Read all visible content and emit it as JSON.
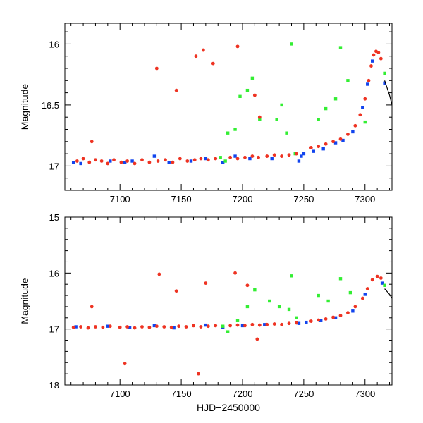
{
  "chart_data": [
    {
      "id": "top",
      "type": "scatter",
      "title": "",
      "xlabel": "",
      "ylabel": "Magnitude",
      "xlim": [
        7055,
        7322
      ],
      "ylim": [
        17.2,
        15.83
      ],
      "x_ticks": [
        7100,
        7150,
        7200,
        7250,
        7300
      ],
      "y_ticks": [
        16,
        16.5,
        17
      ],
      "series": [
        {
          "name": "red",
          "color": "#ee3322",
          "marker": "circle",
          "points": [
            [
              7065,
              16.96
            ],
            [
              7070,
              16.94
            ],
            [
              7075,
              16.97
            ],
            [
              7080,
              16.95
            ],
            [
              7085,
              16.96
            ],
            [
              7090,
              16.98
            ],
            [
              7095,
              16.95
            ],
            [
              7101,
              16.97
            ],
            [
              7106,
              16.96
            ],
            [
              7112,
              16.98
            ],
            [
              7118,
              16.95
            ],
            [
              7124,
              16.97
            ],
            [
              7131,
              16.96
            ],
            [
              7137,
              16.95
            ],
            [
              7143,
              16.97
            ],
            [
              7149,
              16.94
            ],
            [
              7155,
              16.96
            ],
            [
              7161,
              16.95
            ],
            [
              7166,
              16.94
            ],
            [
              7172,
              16.95
            ],
            [
              7178,
              16.94
            ],
            [
              7190,
              16.93
            ],
            [
              7196,
              16.94
            ],
            [
              7202,
              16.93
            ],
            [
              7208,
              16.92
            ],
            [
              7213,
              16.93
            ],
            [
              7220,
              16.92
            ],
            [
              7226,
              16.91
            ],
            [
              7232,
              16.92
            ],
            [
              7238,
              16.91
            ],
            [
              7244,
              16.9
            ],
            [
              7256,
              16.85
            ],
            [
              7262,
              16.84
            ],
            [
              7268,
              16.82
            ],
            [
              7274,
              16.8
            ],
            [
              7280,
              16.78
            ],
            [
              7286,
              16.74
            ],
            [
              7292,
              16.67
            ],
            [
              7296,
              16.58
            ],
            [
              7300,
              16.45
            ],
            [
              7303,
              16.3
            ],
            [
              7305,
              16.18
            ],
            [
              7307,
              16.09
            ],
            [
              7309,
              16.06
            ],
            [
              7311,
              16.07
            ],
            [
              7313,
              16.12
            ],
            [
              7077,
              16.8
            ],
            [
              7130,
              16.2
            ],
            [
              7146,
              16.38
            ],
            [
              7162,
              16.1
            ],
            [
              7168,
              16.05
            ],
            [
              7176,
              16.16
            ],
            [
              7196,
              16.02
            ],
            [
              7210,
              16.42
            ],
            [
              7214,
              16.6
            ]
          ]
        },
        {
          "name": "blue",
          "color": "#1144ee",
          "marker": "square",
          "points": [
            [
              7062,
              16.97
            ],
            [
              7068,
              16.98
            ],
            [
              7092,
              16.96
            ],
            [
              7104,
              16.97
            ],
            [
              7110,
              16.96
            ],
            [
              7128,
              16.92
            ],
            [
              7140,
              16.97
            ],
            [
              7158,
              16.96
            ],
            [
              7170,
              16.94
            ],
            [
              7184,
              16.97
            ],
            [
              7194,
              16.92
            ],
            [
              7206,
              16.94
            ],
            [
              7224,
              16.94
            ],
            [
              7246,
              16.96
            ],
            [
              7248,
              16.92
            ],
            [
              7250,
              16.9
            ],
            [
              7258,
              16.88
            ],
            [
              7266,
              16.86
            ],
            [
              7276,
              16.81
            ],
            [
              7282,
              16.79
            ],
            [
              7290,
              16.72
            ],
            [
              7298,
              16.52
            ],
            [
              7302,
              16.33
            ],
            [
              7306,
              16.14
            ],
            [
              7316,
              16.32
            ]
          ]
        },
        {
          "name": "green",
          "color": "#33ee33",
          "marker": "square",
          "points": [
            [
              7182,
              16.93
            ],
            [
              7186,
              16.96
            ],
            [
              7188,
              16.73
            ],
            [
              7194,
              16.7
            ],
            [
              7198,
              16.43
            ],
            [
              7204,
              16.38
            ],
            [
              7208,
              16.28
            ],
            [
              7214,
              16.62
            ],
            [
              7228,
              16.62
            ],
            [
              7232,
              16.5
            ],
            [
              7236,
              16.73
            ],
            [
              7240,
              16.0
            ],
            [
              7243,
              16.9
            ],
            [
              7262,
              16.62
            ],
            [
              7268,
              16.53
            ],
            [
              7276,
              16.45
            ],
            [
              7280,
              16.03
            ],
            [
              7286,
              16.3
            ],
            [
              7300,
              16.64
            ],
            [
              7316,
              16.24
            ]
          ]
        }
      ],
      "model_line": {
        "x": [
          7316,
          7320,
          7322
        ],
        "y": [
          16.3,
          16.42,
          16.5
        ]
      }
    },
    {
      "id": "bottom",
      "type": "scatter",
      "title": "",
      "xlabel": "HJD−2450000",
      "ylabel": "Magnitude",
      "xlim": [
        7055,
        7322
      ],
      "ylim": [
        18,
        15
      ],
      "x_ticks": [
        7100,
        7150,
        7200,
        7250,
        7300
      ],
      "y_ticks": [
        15,
        16,
        17,
        18
      ],
      "series": [
        {
          "name": "red",
          "color": "#ee3322",
          "marker": "circle",
          "points": [
            [
              7062,
              16.97
            ],
            [
              7068,
              16.96
            ],
            [
              7074,
              16.98
            ],
            [
              7080,
              16.96
            ],
            [
              7086,
              16.97
            ],
            [
              7092,
              16.95
            ],
            [
              7100,
              16.97
            ],
            [
              7106,
              16.96
            ],
            [
              7112,
              16.98
            ],
            [
              7118,
              16.96
            ],
            [
              7124,
              16.97
            ],
            [
              7130,
              16.95
            ],
            [
              7136,
              16.96
            ],
            [
              7142,
              16.97
            ],
            [
              7148,
              16.95
            ],
            [
              7154,
              16.96
            ],
            [
              7160,
              16.94
            ],
            [
              7166,
              16.96
            ],
            [
              7172,
              16.95
            ],
            [
              7178,
              16.94
            ],
            [
              7190,
              16.94
            ],
            [
              7196,
              16.93
            ],
            [
              7202,
              16.94
            ],
            [
              7208,
              16.92
            ],
            [
              7214,
              16.93
            ],
            [
              7220,
              16.92
            ],
            [
              7226,
              16.91
            ],
            [
              7232,
              16.92
            ],
            [
              7238,
              16.9
            ],
            [
              7244,
              16.89
            ],
            [
              7256,
              16.86
            ],
            [
              7262,
              16.84
            ],
            [
              7268,
              16.82
            ],
            [
              7274,
              16.79
            ],
            [
              7280,
              16.76
            ],
            [
              7286,
              16.71
            ],
            [
              7292,
              16.6
            ],
            [
              7298,
              16.45
            ],
            [
              7302,
              16.28
            ],
            [
              7306,
              16.12
            ],
            [
              7310,
              16.06
            ],
            [
              7313,
              16.09
            ],
            [
              7077,
              16.6
            ],
            [
              7104,
              17.62
            ],
            [
              7132,
              16.02
            ],
            [
              7146,
              16.32
            ],
            [
              7164,
              17.8
            ],
            [
              7170,
              16.18
            ],
            [
              7194,
              16.0
            ],
            [
              7204,
              16.22
            ],
            [
              7212,
              17.18
            ]
          ]
        },
        {
          "name": "blue",
          "color": "#1144ee",
          "marker": "square",
          "points": [
            [
              7064,
              16.96
            ],
            [
              7090,
              16.95
            ],
            [
              7108,
              16.97
            ],
            [
              7128,
              16.94
            ],
            [
              7144,
              16.98
            ],
            [
              7170,
              16.93
            ],
            [
              7184,
              16.97
            ],
            [
              7200,
              16.94
            ],
            [
              7218,
              16.92
            ],
            [
              7246,
              16.9
            ],
            [
              7252,
              16.88
            ],
            [
              7264,
              16.85
            ],
            [
              7276,
              16.8
            ],
            [
              7290,
              16.68
            ],
            [
              7300,
              16.38
            ],
            [
              7314,
              16.18
            ]
          ]
        },
        {
          "name": "green",
          "color": "#33ee33",
          "marker": "square",
          "points": [
            [
              7184,
              16.95
            ],
            [
              7188,
              17.05
            ],
            [
              7196,
              16.85
            ],
            [
              7204,
              16.6
            ],
            [
              7210,
              16.3
            ],
            [
              7222,
              16.5
            ],
            [
              7230,
              16.6
            ],
            [
              7238,
              16.65
            ],
            [
              7240,
              16.05
            ],
            [
              7244,
              16.8
            ],
            [
              7262,
              16.4
            ],
            [
              7270,
              16.5
            ],
            [
              7280,
              16.1
            ],
            [
              7288,
              16.35
            ],
            [
              7316,
              16.22
            ]
          ]
        }
      ],
      "model_line": {
        "x": [
          7316,
          7320,
          7322
        ],
        "y": [
          16.28,
          16.38,
          16.45
        ]
      }
    }
  ]
}
